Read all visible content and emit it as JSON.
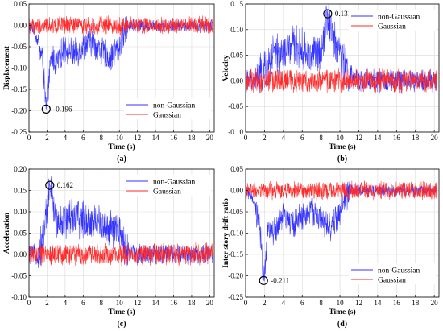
{
  "colors": {
    "non_gaussian": "#3333ff",
    "gaussian": "#ff2a2a",
    "grid": "#d9d9d9",
    "axis": "#000000"
  },
  "chart_data": [
    {
      "type": "line",
      "panel": "(a)",
      "xlabel": "Time (s)",
      "ylabel": "Displacement",
      "xlim": [
        0,
        20.5
      ],
      "ylim": [
        -0.25,
        0.05
      ],
      "xticks": [
        0,
        2,
        4,
        6,
        8,
        10,
        12,
        14,
        16,
        18,
        20
      ],
      "yticks": [
        -0.25,
        -0.2,
        -0.15,
        -0.1,
        -0.05,
        0.0,
        0.05
      ],
      "ytick_labels": [
        "-0.25",
        "-0.20",
        "-0.15",
        "-0.10",
        "-0.05",
        "0.00",
        "0.05"
      ],
      "grid": true,
      "legend_position": "lower-right",
      "annotation": {
        "x": 1.9,
        "y": -0.196,
        "label": "-0.196"
      },
      "series": [
        {
          "name": "non-Gaussian",
          "x": [
            0,
            0.5,
            1,
            1.5,
            1.9,
            2.5,
            3,
            4,
            5,
            6,
            7,
            8,
            9,
            9.5,
            10,
            10.5,
            11,
            12,
            14,
            16,
            18,
            20.3
          ],
          "y": [
            0,
            -0.01,
            -0.04,
            -0.08,
            -0.196,
            -0.07,
            -0.09,
            -0.05,
            -0.07,
            -0.05,
            -0.04,
            -0.06,
            -0.08,
            -0.06,
            -0.05,
            -0.02,
            0.0,
            0.0,
            0.0,
            0.0,
            0.0,
            0.0
          ]
        },
        {
          "name": "Gaussian",
          "x": [
            0,
            2,
            4,
            6,
            8,
            10,
            12,
            14,
            16,
            18,
            20.3
          ],
          "y": [
            0,
            0,
            0,
            0,
            0,
            0,
            0,
            0,
            0,
            0,
            0
          ]
        }
      ]
    },
    {
      "type": "line",
      "panel": "(b)",
      "xlabel": "Time (s)",
      "ylabel": "Velocity",
      "xlim": [
        0,
        20.5
      ],
      "ylim": [
        -0.1,
        0.15
      ],
      "xticks": [
        0,
        2,
        4,
        6,
        8,
        10,
        12,
        14,
        16,
        18,
        20
      ],
      "yticks": [
        -0.1,
        -0.05,
        0.0,
        0.05,
        0.1,
        0.15
      ],
      "ytick_labels": [
        "-0.10",
        "-0.05",
        "0.00",
        "0.05",
        "0.10",
        "0.15"
      ],
      "grid": true,
      "legend_position": "top-right",
      "annotation": {
        "x": 8.7,
        "y": 0.131,
        "label": "0.131"
      },
      "series": [
        {
          "name": "non-Gaussian",
          "x": [
            0,
            1,
            2,
            3,
            4,
            5,
            6,
            7,
            8,
            8.7,
            9.5,
            10,
            10.5,
            11,
            12,
            14,
            16,
            18,
            20.3
          ],
          "y": [
            0,
            0,
            0.02,
            0.05,
            0.05,
            0.07,
            0.06,
            0.05,
            0.06,
            0.131,
            0.07,
            0.06,
            0.03,
            0.01,
            0.0,
            0.0,
            0.0,
            0.0,
            0.0
          ]
        },
        {
          "name": "Gaussian",
          "x": [
            0,
            2,
            4,
            6,
            8,
            10,
            12,
            14,
            16,
            18,
            20.3
          ],
          "y": [
            0,
            0,
            0,
            0,
            0,
            0,
            0,
            0,
            0,
            0,
            0
          ]
        }
      ]
    },
    {
      "type": "line",
      "panel": "(c)",
      "xlabel": "Time (s)",
      "ylabel": "Acceleration",
      "xlim": [
        0,
        20.5
      ],
      "ylim": [
        -0.1,
        0.2
      ],
      "xticks": [
        0,
        2,
        4,
        6,
        8,
        10,
        12,
        14,
        16,
        18,
        20
      ],
      "yticks": [
        -0.1,
        -0.05,
        0.0,
        0.05,
        0.1,
        0.15,
        0.2
      ],
      "ytick_labels": [
        "-0.10",
        "-0.05",
        "0.00",
        "0.05",
        "0.10",
        "0.15",
        "0.20"
      ],
      "grid": true,
      "legend_position": "top-right",
      "annotation": {
        "x": 2.3,
        "y": 0.162,
        "label": "0.162"
      },
      "series": [
        {
          "name": "non-Gaussian",
          "x": [
            0,
            1,
            1.5,
            2.3,
            3,
            4,
            5,
            6,
            7,
            8,
            9,
            10,
            10.5,
            11,
            12,
            14,
            16,
            18,
            20.3
          ],
          "y": [
            0,
            0,
            0.03,
            0.162,
            0.08,
            0.08,
            0.09,
            0.08,
            0.08,
            0.07,
            0.06,
            0.05,
            0.02,
            0.01,
            0.0,
            0.0,
            0.0,
            0.0,
            0.0
          ]
        },
        {
          "name": "Gaussian",
          "x": [
            0,
            2,
            4,
            6,
            8,
            10,
            12,
            14,
            16,
            18,
            20.3
          ],
          "y": [
            0,
            0,
            0,
            0,
            0,
            0,
            0,
            0,
            0,
            0,
            0
          ]
        }
      ]
    },
    {
      "type": "line",
      "panel": "(d)",
      "xlabel": "Time (s)",
      "ylabel": "Inter-story drift ratio",
      "xlim": [
        0,
        20.5
      ],
      "ylim": [
        -0.25,
        0.05
      ],
      "xticks": [
        0,
        2,
        4,
        6,
        8,
        10,
        12,
        14,
        16,
        18,
        20
      ],
      "yticks": [
        -0.25,
        -0.2,
        -0.15,
        -0.1,
        -0.05,
        0.0,
        0.05
      ],
      "ytick_labels": [
        "-0.25",
        "-0.20",
        "-0.15",
        "-0.10",
        "-0.05",
        "0.00",
        "0.05"
      ],
      "grid": true,
      "legend_position": "lower-right",
      "annotation": {
        "x": 1.9,
        "y": -0.211,
        "label": "-0.211"
      },
      "series": [
        {
          "name": "non-Gaussian",
          "x": [
            0,
            0.5,
            1,
            1.5,
            1.9,
            2.5,
            3,
            4,
            5,
            6,
            7,
            8,
            9,
            9.5,
            10,
            10.5,
            11,
            12,
            14,
            16,
            18,
            20.3
          ],
          "y": [
            0,
            -0.01,
            -0.04,
            -0.09,
            -0.211,
            -0.08,
            -0.1,
            -0.06,
            -0.08,
            -0.06,
            -0.05,
            -0.07,
            -0.09,
            -0.07,
            -0.05,
            -0.02,
            0.0,
            0.0,
            0.0,
            0.0,
            0.0,
            0.0
          ]
        },
        {
          "name": "Gaussian",
          "x": [
            0,
            2,
            4,
            6,
            8,
            10,
            12,
            14,
            16,
            18,
            20.3
          ],
          "y": [
            0,
            0,
            0,
            0,
            0,
            0,
            0,
            0,
            0,
            0,
            0
          ]
        }
      ]
    }
  ]
}
